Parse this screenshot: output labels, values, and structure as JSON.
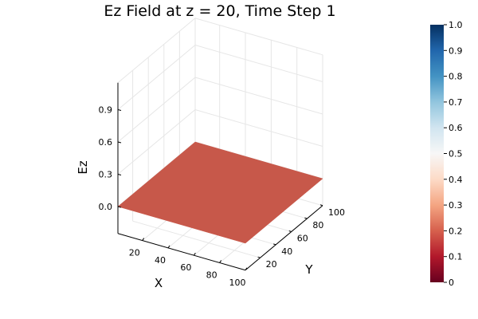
{
  "chart_data": {
    "type": "surface",
    "title": "Ez Field at z = 20, Time Step 1",
    "xlabel": "X",
    "ylabel": "Y",
    "zlabel": "Ez",
    "xlim": [
      1,
      100
    ],
    "ylim": [
      1,
      100
    ],
    "zlim": [
      -0.25,
      1.15
    ],
    "x_ticks": [
      20,
      40,
      60,
      80,
      100
    ],
    "y_ticks": [
      20,
      40,
      60,
      80,
      100
    ],
    "z_ticks": [
      0.0,
      0.3,
      0.6,
      0.9
    ],
    "z_tick_labels": [
      "0.0",
      "0.3",
      "0.6",
      "0.9"
    ],
    "surface": {
      "x_range": [
        1,
        100
      ],
      "y_range": [
        1,
        100
      ],
      "constant_value": 0.0,
      "color": "#c7584a"
    },
    "colorbar": {
      "min": 0.0,
      "max": 1.0,
      "ticks": [
        0.0,
        0.1,
        0.2,
        0.3,
        0.4,
        0.5,
        0.6,
        0.7,
        0.8,
        0.9,
        1.0
      ],
      "tick_labels": [
        "0",
        "0.1",
        "0.2",
        "0.3",
        "0.4",
        "0.5",
        "0.6",
        "0.7",
        "0.8",
        "0.9",
        "1.0"
      ],
      "colormap": "RdBu",
      "stops": [
        "#67001f",
        "#b2182b",
        "#d6604d",
        "#f4a582",
        "#fddbc7",
        "#f7f7f7",
        "#d1e5f0",
        "#92c5de",
        "#4393c3",
        "#2166ac",
        "#053061"
      ]
    },
    "grid": true
  }
}
